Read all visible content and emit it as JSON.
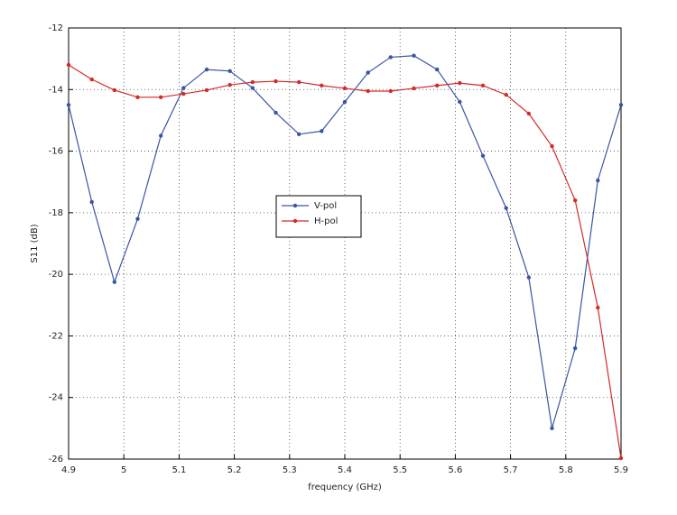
{
  "chart_data": {
    "type": "line",
    "xlabel": "frequency (GHz)",
    "ylabel": "S11 (dB)",
    "x": [
      4.9,
      4.942,
      4.983,
      5.025,
      5.067,
      5.108,
      5.15,
      5.192,
      5.233,
      5.275,
      5.317,
      5.358,
      5.4,
      5.442,
      5.483,
      5.525,
      5.567,
      5.608,
      5.65,
      5.692,
      5.733,
      5.775,
      5.817,
      5.858,
      5.9
    ],
    "series": [
      {
        "name": "V-pol",
        "color": "#3a55a4",
        "values": [
          -14.5,
          -17.65,
          -20.25,
          -18.2,
          -15.5,
          -13.95,
          -13.35,
          -13.4,
          -13.95,
          -14.75,
          -15.45,
          -15.35,
          -14.4,
          -13.45,
          -12.95,
          -12.9,
          -13.35,
          -14.4,
          -16.15,
          -17.85,
          -20.1,
          -25,
          -22.4,
          -16.95,
          -14.5
        ]
      },
      {
        "name": "H-pol",
        "color": "#d42a2a",
        "values": [
          -13.2,
          -13.67,
          -14.02,
          -14.25,
          -14.25,
          -14.14,
          -14.02,
          -13.85,
          -13.76,
          -13.73,
          -13.76,
          -13.87,
          -13.96,
          -14.05,
          -14.05,
          -13.96,
          -13.87,
          -13.79,
          -13.87,
          -14.17,
          -14.78,
          -15.84,
          -17.6,
          -21.08,
          -25.97
        ]
      }
    ],
    "xlim": [
      4.9,
      5.9
    ],
    "xticks": [
      4.9,
      5,
      5.1,
      5.2,
      5.3,
      5.4,
      5.5,
      5.6,
      5.7,
      5.8,
      5.9
    ],
    "ylim": [
      -26,
      -12
    ],
    "yticks": [
      -26,
      -24,
      -22,
      -20,
      -18,
      -16,
      -14,
      -12
    ],
    "grid": true,
    "legend_location": "center"
  }
}
